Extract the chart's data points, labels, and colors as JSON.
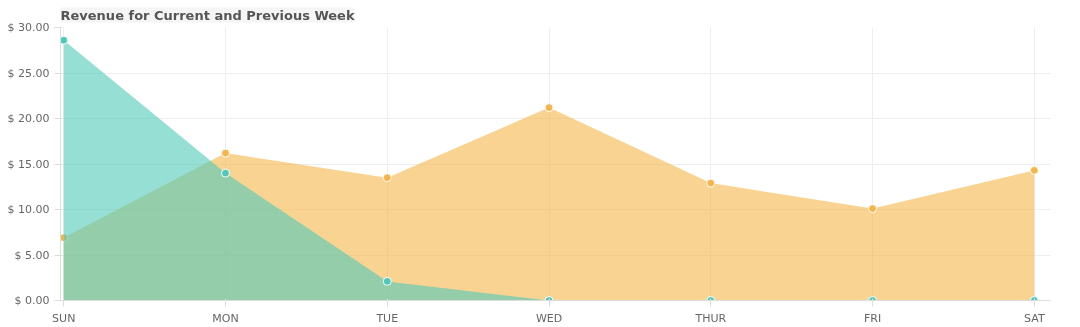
{
  "chart_data": {
    "type": "area",
    "title": "Revenue for Current and Previous Week",
    "categories": [
      "SUN",
      "MON",
      "TUE",
      "WED",
      "THUR",
      "FRI",
      "SAT"
    ],
    "series": [
      {
        "color": "#f5b54a",
        "values": [
          6.9,
          16.2,
          13.5,
          21.2,
          12.9,
          10.1,
          14.3
        ]
      },
      {
        "color": "#4fc9b9",
        "values": [
          28.6,
          14.0,
          2.1,
          0,
          0,
          0,
          0
        ]
      }
    ],
    "ylim": [
      0,
      30
    ],
    "yticks": [
      {
        "value": 0,
        "label": "$ 0.00"
      },
      {
        "value": 5,
        "label": "$ 5.00"
      },
      {
        "value": 10,
        "label": "$ 10.00"
      },
      {
        "value": 15,
        "label": "$ 15.00"
      },
      {
        "value": 20,
        "label": "$ 20.00"
      },
      {
        "value": 25,
        "label": "$ 25.00"
      },
      {
        "value": 30,
        "label": "$ 30.00"
      }
    ],
    "grid": true,
    "marker": "circle"
  }
}
